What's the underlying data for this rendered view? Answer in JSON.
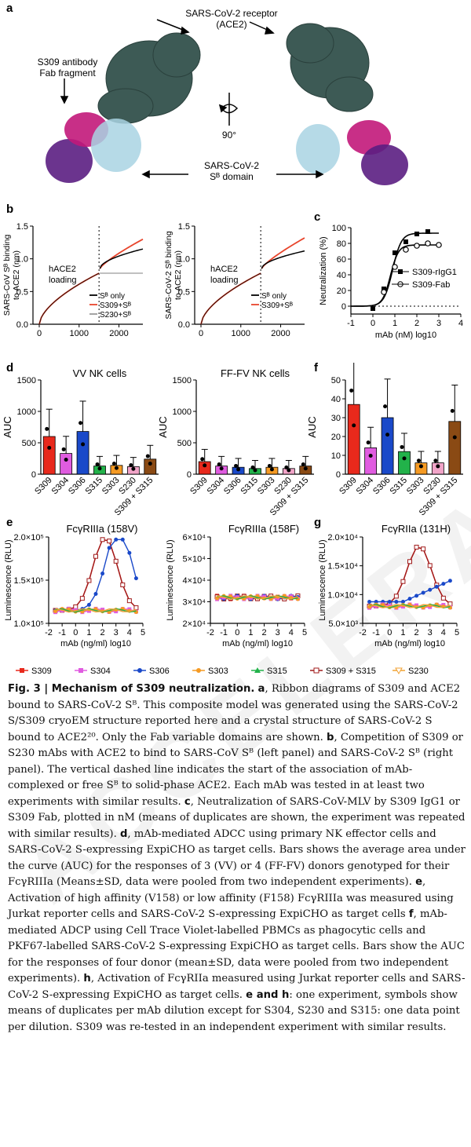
{
  "panels": {
    "a": "a",
    "b": "b",
    "c": "c",
    "d": "d",
    "e": "e",
    "f": "f",
    "g": "g"
  },
  "panel_a": {
    "receptor_label_1": "SARS-CoV-2 receptor",
    "receptor_label_2": "(ACE2)",
    "antibody_label_1": "S309 antibody",
    "antibody_label_2": "Fab fragment",
    "rotation": "90°",
    "domain_label_1": "SARS-CoV-2",
    "domain_label_2": "Sᴮ domain",
    "colors": {
      "ace2": "#3d5a55",
      "heavy": "#5b1e82",
      "light": "#c2187a",
      "sb": "#a9d3e3"
    }
  },
  "chart_data": [
    {
      "id": "b_left",
      "type": "line",
      "ylabel": "SARS-CoV Sᴮ binding to ACE2 (nm)",
      "xlabel": "time (sec)",
      "ylim": [
        0,
        1.5
      ],
      "yticks": [
        "0.0",
        "0.5",
        "1.0",
        "1.5"
      ],
      "xticks": [
        "0",
        "1000",
        "2000"
      ],
      "annotation": "hACE2 loading",
      "legend": [
        "Sᴮ only",
        "S309+Sᴮ",
        "S230+Sᴮ"
      ],
      "series_colors": [
        "#000000",
        "#e8452c",
        "#9a9a9a"
      ]
    },
    {
      "id": "b_right",
      "type": "line",
      "ylabel": "SARS-CoV-2 Sᴮ binding to ACE2 (nm)",
      "xlabel": "time (sec)",
      "ylim": [
        0,
        1.5
      ],
      "yticks": [
        "0.0",
        "0.5",
        "1.0",
        "1.5"
      ],
      "xticks": [
        "0",
        "1000",
        "2000"
      ],
      "annotation": "hACE2 loading",
      "legend": [
        "Sᴮ only",
        "S309+Sᴮ"
      ],
      "series_colors": [
        "#000000",
        "#e8452c"
      ]
    },
    {
      "id": "c",
      "type": "scatter",
      "ylabel": "Neutralization (%)",
      "xlabel": "mAb (nM) log10",
      "ylim": [
        -10,
        100
      ],
      "yticks": [
        "0",
        "20",
        "40",
        "60",
        "80",
        "100"
      ],
      "xticks": [
        "-1",
        "0",
        "1",
        "2",
        "3",
        "4"
      ],
      "series": [
        {
          "name": "S309-rIgG1",
          "x": [
            0,
            0.5,
            1,
            1.5,
            2,
            2.5
          ],
          "y": [
            -3,
            22,
            68,
            82,
            92,
            95
          ]
        },
        {
          "name": "S309-Fab",
          "x": [
            0.5,
            1,
            1.5,
            2,
            2.5,
            3
          ],
          "y": [
            18,
            50,
            72,
            77,
            80,
            78
          ]
        }
      ]
    },
    {
      "id": "d_left",
      "type": "bar",
      "title": "VV NK cells",
      "ylabel": "AUC",
      "ylim": [
        0,
        1500
      ],
      "yticks": [
        "0",
        "500",
        "1000",
        "1500"
      ],
      "categories": [
        "S309",
        "S304",
        "S306",
        "S315",
        "S303",
        "S230",
        "S309 + S315"
      ],
      "values": [
        600,
        330,
        680,
        130,
        140,
        120,
        240
      ]
    },
    {
      "id": "d_right",
      "type": "bar",
      "title": "FF-FV NK cells",
      "ylabel": "AUC",
      "ylim": [
        0,
        1500
      ],
      "yticks": [
        "0",
        "500",
        "1000",
        "1500"
      ],
      "categories": [
        "S309",
        "S304",
        "S306",
        "S315",
        "S303",
        "S230",
        "S309 + S315"
      ],
      "values": [
        200,
        130,
        110,
        90,
        110,
        90,
        130
      ]
    },
    {
      "id": "f",
      "type": "bar",
      "ylabel": "AUC",
      "ylim": [
        0,
        50
      ],
      "yticks": [
        "0",
        "10",
        "20",
        "30",
        "40",
        "50"
      ],
      "categories": [
        "S309",
        "S304",
        "S306",
        "S315",
        "S303",
        "S230",
        "S309 + S315"
      ],
      "values": [
        37,
        14,
        30,
        12,
        6,
        6,
        28
      ]
    },
    {
      "id": "e_left",
      "type": "line",
      "title": "FcγRIIIa (158V)",
      "ylabel": "Luminescence (RLU)",
      "xlabel": "mAb (ng/ml) log10",
      "yticks": [
        "1.0×10⁵",
        "1.5×10⁵",
        "2.0×10⁵"
      ],
      "xticks": [
        "-2",
        "-1",
        "0",
        "1",
        "2",
        "3",
        "4",
        "5"
      ]
    },
    {
      "id": "e_right",
      "type": "line",
      "title": "FcγRIIIa (158F)",
      "ylabel": "Luminescence (RLU)",
      "xlabel": "mAb (ng/ml) log10",
      "yticks": [
        "2×10⁴",
        "3×10⁴",
        "4×10⁴",
        "5×10⁴",
        "6×10⁴"
      ],
      "xticks": [
        "-2",
        "-1",
        "0",
        "1",
        "2",
        "3",
        "4",
        "5"
      ]
    },
    {
      "id": "g",
      "type": "line",
      "title": "FcγRIIa (131H)",
      "ylabel": "Luminescence (RLU)",
      "xlabel": "mAb (ng/ml) log10",
      "yticks": [
        "5.0×10³",
        "1.0×10⁴",
        "1.5×10⁴",
        "2.0×10⁴"
      ],
      "xticks": [
        "-2",
        "-1",
        "0",
        "1",
        "2",
        "3",
        "4",
        "5"
      ]
    }
  ],
  "bar_colors": [
    "#e8291c",
    "#e05ce0",
    "#1a49c9",
    "#22b24a",
    "#f59a23",
    "#f1a4c8",
    "#8a4a14"
  ],
  "legend": [
    {
      "label": "S309",
      "color": "#e8291c",
      "marker": "square"
    },
    {
      "label": "S304",
      "color": "#e05ce0",
      "marker": "square"
    },
    {
      "label": "S306",
      "color": "#1a49c9",
      "marker": "circle"
    },
    {
      "label": "S303",
      "color": "#f59a23",
      "marker": "circle"
    },
    {
      "label": "S315",
      "color": "#22b24a",
      "marker": "triangle"
    },
    {
      "label": "S309 + S315",
      "color": "#a01a1a",
      "marker": "open-square"
    },
    {
      "label": "S230",
      "color": "#f1a233",
      "marker": "open-triangle-down"
    }
  ],
  "caption": {
    "title": "Fig. 3 | Mechanism of S309 neutralization.",
    "p_a_label": "a",
    "p_a": ", Ribbon diagrams of S309 and ACE2 bound to SARS-CoV-2 Sᴮ. This composite model was generated using the SARS-CoV-2 S/S309 cryoEM structure reported here and a crystal structure of SARS-CoV-2 S bound to ACE2²⁰. Only the Fab variable domains are shown.",
    "p_b_label": "b",
    "p_b": ", Competition of S309 or S230 mAbs with ACE2 to bind to SARS-CoV Sᴮ (left panel) and SARS-CoV-2 Sᴮ (right panel). The vertical dashed line indicates the start of the association of mAb-complexed or free Sᴮ to solid-phase ACE2. Each mAb was tested in at least two experiments with similar results.",
    "p_c_label": "c",
    "p_c": ", Neutralization of SARS-CoV-MLV by S309 IgG1 or S309 Fab, plotted in nM (means of duplicates are shown, the experiment was repeated with similar results).",
    "p_d_label": "d",
    "p_d": ", mAb-mediated ADCC using primary NK effector cells and SARS-CoV-2 S-expressing ExpiCHO as target cells. Bars shows the average area under the curve (AUC) for the responses of 3 (VV) or 4 (FF-FV) donors genotyped for their FcγRIIIa (Means±SD, data were pooled from two independent experiments).",
    "p_e_label": "e",
    "p_e": ", Activation of high affinity (V158) or low affinity (F158) FcγRIIIa was measured using Jurkat reporter cells and SARS-CoV-2 S-expressing ExpiCHO as target cells",
    "p_f_label": "f",
    "p_f": ", mAb-mediated ADCP using Cell Trace Violet-labelled PBMCs as phagocytic cells and PKF67-labelled SARS-CoV-2 S-expressing ExpiCHO as target cells. Bars show the AUC for the responses of four donor (mean±SD, data were pooled from two independent experiments).",
    "p_h_label": "h",
    "p_h": ", Activation of FcγRIIa measured using Jurkat reporter cells and SARS-CoV-2 S-expressing ExpiCHO as target cells.",
    "p_eh_label": "e and h",
    "p_eh": ": one experiment, symbols show means of duplicates per mAb dilution except for S304, S230 and S315: one data point per dilution. S309 was re-tested in an independent experiment with similar results."
  },
  "watermark": "ACCELERATED ARTICLE"
}
